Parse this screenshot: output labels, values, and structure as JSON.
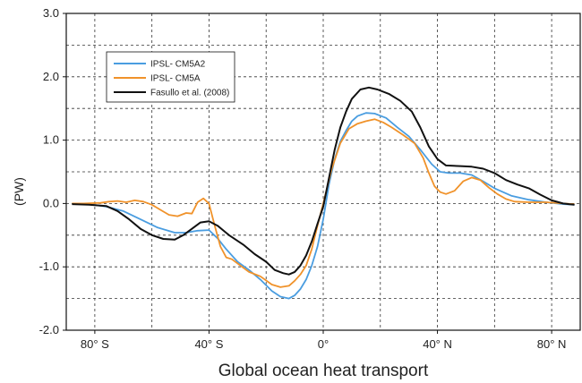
{
  "chart_data": {
    "type": "line",
    "xlabel": "Global ocean heat transport",
    "ylabel": "(PW)",
    "xlim": [
      -90,
      90
    ],
    "ylim": [
      -2.0,
      3.0
    ],
    "x_ticks": [
      {
        "value": -80,
        "label": "80° S"
      },
      {
        "value": -40,
        "label": "40° S"
      },
      {
        "value": 0,
        "label": "0°"
      },
      {
        "value": 40,
        "label": "40° N"
      },
      {
        "value": 80,
        "label": "80° N"
      }
    ],
    "y_ticks": [
      {
        "value": 3.0,
        "label": "3.0"
      },
      {
        "value": 2.0,
        "label": "2.0"
      },
      {
        "value": 1.0,
        "label": "1.0"
      },
      {
        "value": 0.0,
        "label": "0.0"
      },
      {
        "value": -1.0,
        "label": "-1.0"
      },
      {
        "value": -2.0,
        "label": "-2.0"
      }
    ],
    "x_grid": [
      -80,
      -60,
      -40,
      -20,
      0,
      20,
      40,
      60,
      80
    ],
    "y_grid": [
      2.5,
      2.0,
      1.5,
      1.0,
      0.5,
      0.0,
      -0.5,
      -1.0,
      -1.5
    ],
    "grid": true,
    "legend_position": "top-left",
    "series": [
      {
        "name": "IPSL- CM5A2",
        "color": "#4a9de0",
        "points": [
          [
            -88,
            0.0
          ],
          [
            -82,
            -0.01
          ],
          [
            -76,
            -0.05
          ],
          [
            -70,
            -0.12
          ],
          [
            -64,
            -0.25
          ],
          [
            -58,
            -0.38
          ],
          [
            -52,
            -0.46
          ],
          [
            -48,
            -0.46
          ],
          [
            -44,
            -0.43
          ],
          [
            -40,
            -0.42
          ],
          [
            -37,
            -0.55
          ],
          [
            -34,
            -0.72
          ],
          [
            -30,
            -0.92
          ],
          [
            -26,
            -1.05
          ],
          [
            -22,
            -1.2
          ],
          [
            -18,
            -1.38
          ],
          [
            -15,
            -1.47
          ],
          [
            -12,
            -1.5
          ],
          [
            -10,
            -1.45
          ],
          [
            -8,
            -1.35
          ],
          [
            -6,
            -1.2
          ],
          [
            -4,
            -0.98
          ],
          [
            -2,
            -0.68
          ],
          [
            0,
            -0.25
          ],
          [
            2,
            0.3
          ],
          [
            4,
            0.7
          ],
          [
            6,
            0.98
          ],
          [
            8,
            1.15
          ],
          [
            10,
            1.3
          ],
          [
            12,
            1.38
          ],
          [
            15,
            1.43
          ],
          [
            18,
            1.42
          ],
          [
            22,
            1.35
          ],
          [
            26,
            1.2
          ],
          [
            30,
            1.06
          ],
          [
            34,
            0.85
          ],
          [
            38,
            0.62
          ],
          [
            41,
            0.5
          ],
          [
            44,
            0.48
          ],
          [
            48,
            0.48
          ],
          [
            52,
            0.45
          ],
          [
            56,
            0.35
          ],
          [
            60,
            0.24
          ],
          [
            66,
            0.12
          ],
          [
            72,
            0.06
          ],
          [
            78,
            0.02
          ],
          [
            84,
            -0.01
          ],
          [
            88,
            -0.02
          ]
        ]
      },
      {
        "name": "IPSL- CM5A",
        "color": "#f0922a",
        "points": [
          [
            -88,
            0.0
          ],
          [
            -84,
            0.0
          ],
          [
            -78,
            0.01
          ],
          [
            -75,
            0.03
          ],
          [
            -72,
            0.04
          ],
          [
            -69,
            0.02
          ],
          [
            -66,
            0.05
          ],
          [
            -63,
            0.03
          ],
          [
            -60,
            -0.02
          ],
          [
            -57,
            -0.1
          ],
          [
            -54,
            -0.18
          ],
          [
            -51,
            -0.2
          ],
          [
            -48,
            -0.15
          ],
          [
            -46,
            -0.16
          ],
          [
            -44,
            0.02
          ],
          [
            -42,
            0.08
          ],
          [
            -40,
            0.0
          ],
          [
            -38,
            -0.35
          ],
          [
            -36,
            -0.68
          ],
          [
            -34,
            -0.85
          ],
          [
            -32,
            -0.88
          ],
          [
            -29,
            -0.98
          ],
          [
            -26,
            -1.08
          ],
          [
            -22,
            -1.15
          ],
          [
            -18,
            -1.28
          ],
          [
            -15,
            -1.32
          ],
          [
            -12,
            -1.3
          ],
          [
            -10,
            -1.22
          ],
          [
            -8,
            -1.12
          ],
          [
            -6,
            -0.98
          ],
          [
            -4,
            -0.72
          ],
          [
            -2,
            -0.35
          ],
          [
            0,
            0.0
          ],
          [
            3,
            0.55
          ],
          [
            6,
            0.95
          ],
          [
            9,
            1.18
          ],
          [
            12,
            1.26
          ],
          [
            15,
            1.3
          ],
          [
            18,
            1.33
          ],
          [
            21,
            1.28
          ],
          [
            24,
            1.2
          ],
          [
            28,
            1.08
          ],
          [
            32,
            0.95
          ],
          [
            35,
            0.72
          ],
          [
            37,
            0.48
          ],
          [
            39,
            0.27
          ],
          [
            41,
            0.18
          ],
          [
            43,
            0.15
          ],
          [
            46,
            0.2
          ],
          [
            49,
            0.35
          ],
          [
            52,
            0.41
          ],
          [
            55,
            0.37
          ],
          [
            58,
            0.25
          ],
          [
            61,
            0.15
          ],
          [
            64,
            0.07
          ],
          [
            67,
            0.03
          ],
          [
            72,
            0.02
          ],
          [
            78,
            0.02
          ],
          [
            84,
            0.0
          ],
          [
            88,
            -0.01
          ]
        ]
      },
      {
        "name": "Fasullo et al. (2008)",
        "color": "#111111",
        "points": [
          [
            -88,
            -0.01
          ],
          [
            -82,
            -0.02
          ],
          [
            -76,
            -0.04
          ],
          [
            -72,
            -0.12
          ],
          [
            -68,
            -0.25
          ],
          [
            -64,
            -0.4
          ],
          [
            -60,
            -0.5
          ],
          [
            -56,
            -0.56
          ],
          [
            -52,
            -0.57
          ],
          [
            -49,
            -0.5
          ],
          [
            -46,
            -0.4
          ],
          [
            -43,
            -0.3
          ],
          [
            -40,
            -0.28
          ],
          [
            -37,
            -0.35
          ],
          [
            -33,
            -0.5
          ],
          [
            -28,
            -0.65
          ],
          [
            -24,
            -0.8
          ],
          [
            -20,
            -0.92
          ],
          [
            -17,
            -1.05
          ],
          [
            -14,
            -1.1
          ],
          [
            -12,
            -1.12
          ],
          [
            -10,
            -1.08
          ],
          [
            -8,
            -0.98
          ],
          [
            -6,
            -0.82
          ],
          [
            -4,
            -0.6
          ],
          [
            -2,
            -0.32
          ],
          [
            0,
            -0.05
          ],
          [
            2,
            0.4
          ],
          [
            4,
            0.85
          ],
          [
            6,
            1.2
          ],
          [
            8,
            1.45
          ],
          [
            10,
            1.65
          ],
          [
            13,
            1.8
          ],
          [
            16,
            1.83
          ],
          [
            19,
            1.8
          ],
          [
            23,
            1.73
          ],
          [
            27,
            1.62
          ],
          [
            31,
            1.45
          ],
          [
            34,
            1.2
          ],
          [
            37,
            0.9
          ],
          [
            40,
            0.7
          ],
          [
            43,
            0.6
          ],
          [
            48,
            0.59
          ],
          [
            52,
            0.58
          ],
          [
            56,
            0.55
          ],
          [
            60,
            0.48
          ],
          [
            64,
            0.37
          ],
          [
            68,
            0.3
          ],
          [
            72,
            0.24
          ],
          [
            76,
            0.14
          ],
          [
            80,
            0.05
          ],
          [
            84,
            0.0
          ],
          [
            88,
            -0.02
          ]
        ]
      }
    ]
  }
}
